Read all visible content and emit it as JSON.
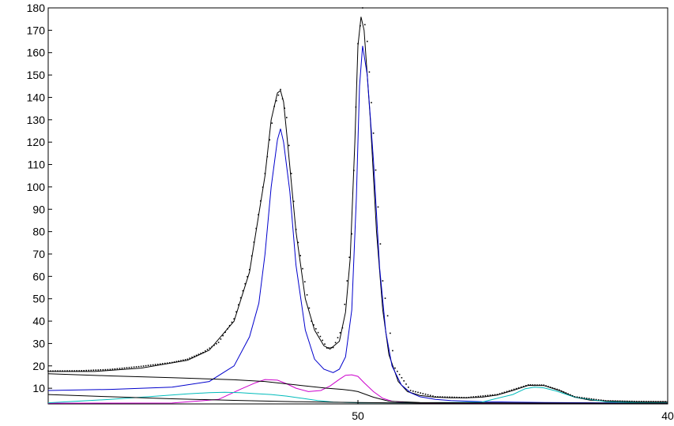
{
  "chart_data": {
    "type": "line",
    "title": "",
    "xlabel": "",
    "ylabel": "",
    "xlim": [
      60,
      40
    ],
    "ylim": [
      3,
      180
    ],
    "y_ticks": [
      10,
      20,
      30,
      40,
      50,
      60,
      70,
      80,
      90,
      100,
      110,
      120,
      130,
      140,
      150,
      160,
      170,
      180
    ],
    "y_tick_labels": [
      "10",
      "20",
      "30",
      "40",
      "50",
      "60",
      "70",
      "80",
      "90",
      "100",
      "110",
      "120",
      "130",
      "140",
      "150",
      "160",
      "170",
      "180"
    ],
    "x_ticks": [
      50,
      40
    ],
    "x_tick_labels": [
      "50",
      "40"
    ],
    "grid": false,
    "legend": "none",
    "colors": {
      "envelope": "#000000",
      "measured": "#000000",
      "component_main": "#0000cc",
      "component_magenta": "#cc00cc",
      "component_cyan": "#00bbbb",
      "baseline": "#000000"
    },
    "series": [
      {
        "key": "envelope",
        "x": [
          60.0,
          58.5,
          57.0,
          55.5,
          54.8,
          54.0,
          53.5,
          53.0,
          52.8,
          52.6,
          52.5,
          52.4,
          52.3,
          52.0,
          51.7,
          51.4,
          51.1,
          50.9,
          50.6,
          50.4,
          50.25,
          50.1,
          50.0,
          49.9,
          49.8,
          49.6,
          49.4,
          49.2,
          49.0,
          48.7,
          48.4,
          48.0,
          47.5,
          47.0,
          46.5,
          46.0,
          45.5,
          45.0,
          44.5,
          44.0,
          43.5,
          43.0,
          42.5,
          42.0,
          41.0,
          40.0
        ],
        "y": [
          17.5,
          17.5,
          19.0,
          22.5,
          27.0,
          40.0,
          62.0,
          105.0,
          130.0,
          142.0,
          143.0,
          138.0,
          124.0,
          80.0,
          50.0,
          36.0,
          29.0,
          27.5,
          31.0,
          44.0,
          68.0,
          120.0,
          163.0,
          176.0,
          170.0,
          130.0,
          80.0,
          45.0,
          25.0,
          13.0,
          8.5,
          6.8,
          6.0,
          5.7,
          5.7,
          6.0,
          7.0,
          9.0,
          11.3,
          11.2,
          9.0,
          6.0,
          4.7,
          4.3,
          4.0,
          4.0
        ]
      },
      {
        "key": "measured",
        "x": [
          60.0,
          59.0,
          58.0,
          57.0,
          56.0,
          55.5,
          55.0,
          54.5,
          54.0,
          53.5,
          53.0,
          52.7,
          52.5,
          52.3,
          52.0,
          51.5,
          51.0,
          50.8,
          50.5,
          50.2,
          50.0,
          49.85,
          49.7,
          49.5,
          49.2,
          48.8,
          48.3,
          47.5,
          46.5,
          45.5,
          44.5,
          44.0,
          43.5,
          43.0,
          42.0,
          41.0,
          40.0
        ],
        "y": [
          17.7,
          17.8,
          18.4,
          19.8,
          21.5,
          23.0,
          26.0,
          30.5,
          41.0,
          63.0,
          106.0,
          136.0,
          143.5,
          131.0,
          81.0,
          40.0,
          28.0,
          28.2,
          37.0,
          79.0,
          164.0,
          180.0,
          165.0,
          124.0,
          58.0,
          19.0,
          9.0,
          6.2,
          5.8,
          7.2,
          11.5,
          11.4,
          9.2,
          6.2,
          4.4,
          4.1,
          4.0
        ]
      },
      {
        "key": "component_main",
        "x": [
          60.0,
          58.0,
          56.0,
          54.8,
          54.0,
          53.5,
          53.2,
          53.0,
          52.8,
          52.6,
          52.5,
          52.4,
          52.2,
          52.0,
          51.7,
          51.4,
          51.1,
          50.8,
          50.6,
          50.4,
          50.2,
          50.05,
          49.95,
          49.85,
          49.7,
          49.5,
          49.3,
          49.1,
          48.9,
          48.6,
          48.3,
          48.0,
          47.5,
          47.0,
          46.0,
          45.0,
          44.0,
          42.0,
          40.0
        ],
        "y": [
          9.0,
          9.5,
          10.5,
          13.0,
          20.0,
          33.0,
          48.0,
          70.0,
          100.0,
          121.0,
          126.0,
          120.0,
          98.0,
          65.0,
          36.0,
          23.0,
          18.5,
          17.0,
          18.5,
          24.0,
          45.0,
          95.0,
          145.0,
          163.0,
          150.0,
          112.0,
          64.0,
          35.0,
          20.0,
          11.5,
          8.0,
          6.2,
          5.0,
          4.5,
          4.0,
          3.8,
          3.6,
          3.5,
          3.4
        ]
      },
      {
        "key": "component_magenta",
        "x": [
          60.0,
          56.0,
          54.5,
          53.8,
          53.3,
          53.0,
          52.6,
          52.3,
          52.0,
          51.6,
          51.2,
          50.9,
          50.6,
          50.4,
          50.2,
          50.0,
          49.8,
          49.5,
          49.2,
          48.9,
          48.5,
          48.0,
          46.0,
          40.0
        ],
        "y": [
          3.3,
          3.4,
          5.0,
          9.5,
          12.5,
          13.9,
          13.6,
          12.0,
          10.0,
          8.5,
          9.0,
          11.0,
          14.0,
          15.8,
          16.0,
          15.3,
          12.5,
          8.5,
          5.5,
          4.2,
          3.6,
          3.4,
          3.3,
          3.3
        ]
      },
      {
        "key": "component_cyan",
        "x": [
          60.0,
          58.0,
          56.5,
          55.5,
          54.8,
          54.3,
          53.8,
          53.3,
          52.8,
          52.3,
          51.8,
          51.3,
          50.8,
          50.0,
          48.0,
          46.0,
          45.0,
          44.6,
          44.3,
          44.0,
          43.6,
          43.0,
          42.0,
          41.0,
          40.0
        ],
        "y": [
          3.5,
          5.0,
          6.5,
          7.5,
          8.0,
          8.2,
          8.0,
          7.6,
          7.2,
          6.5,
          5.5,
          4.5,
          3.8,
          3.5,
          3.5,
          3.8,
          7.2,
          9.8,
          10.5,
          10.2,
          8.8,
          6.0,
          4.0,
          3.6,
          3.5
        ]
      },
      {
        "key": "baseline_a",
        "x": [
          60.0,
          58.0,
          56.0,
          54.0,
          53.0,
          52.0,
          51.0,
          50.5,
          50.2,
          50.0,
          49.5,
          49.0,
          48.0,
          46.0,
          44.0,
          42.0,
          40.0
        ],
        "y": [
          16.5,
          15.5,
          14.7,
          13.8,
          13.0,
          11.5,
          10.0,
          9.5,
          9.0,
          8.5,
          6.0,
          4.2,
          3.6,
          3.5,
          3.4,
          3.3,
          3.3
        ]
      },
      {
        "key": "baseline_b",
        "x": [
          60.0,
          58.0,
          56.0,
          54.0,
          52.0,
          51.0,
          50.0,
          49.0,
          48.0,
          46.0,
          44.0,
          42.0,
          40.0
        ],
        "y": [
          7.2,
          6.2,
          5.3,
          4.6,
          4.0,
          3.8,
          3.6,
          3.5,
          3.4,
          3.4,
          3.3,
          3.3,
          3.3
        ]
      }
    ]
  }
}
